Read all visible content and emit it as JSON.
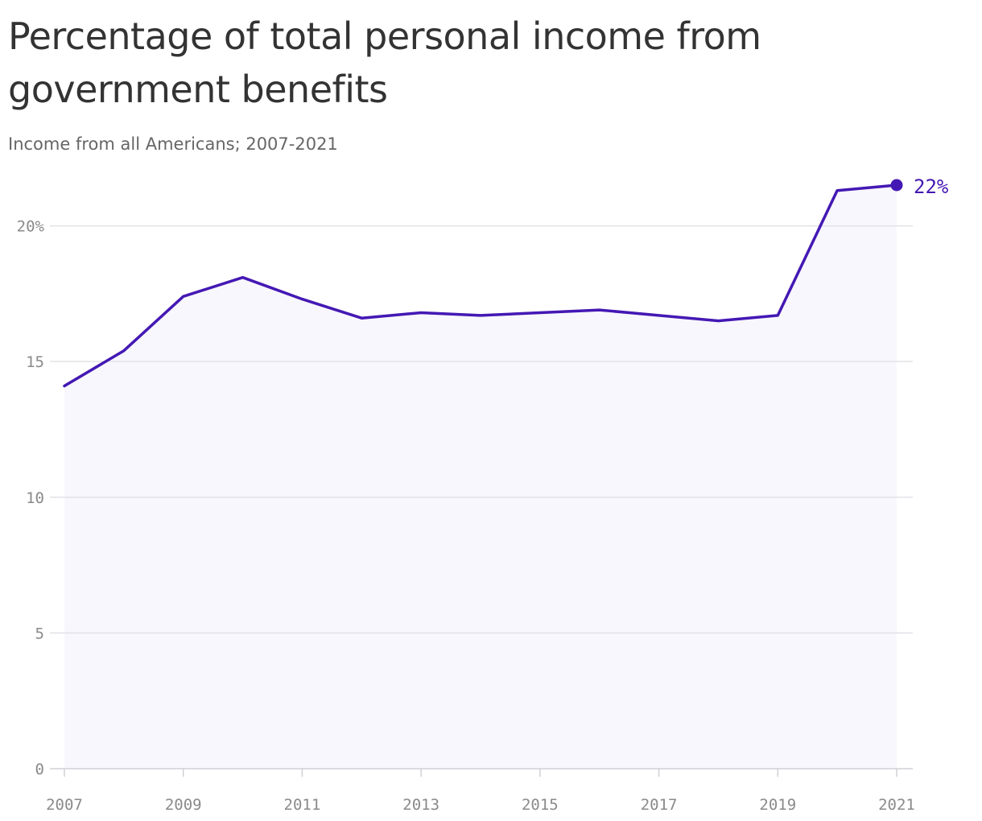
{
  "chart_data": {
    "type": "line",
    "title": "Percentage of total personal income from government benefits",
    "subtitle": "Income from all Americans; 2007-2021",
    "xlabel": "",
    "ylabel": "",
    "x": [
      2007,
      2008,
      2009,
      2010,
      2011,
      2012,
      2013,
      2014,
      2015,
      2016,
      2017,
      2018,
      2019,
      2020,
      2021
    ],
    "series": [
      {
        "values": [
          14.1,
          15.4,
          17.4,
          18.1,
          17.3,
          16.6,
          16.8,
          16.7,
          16.8,
          16.9,
          16.7,
          16.5,
          16.7,
          21.3,
          21.5
        ]
      }
    ],
    "ylim": [
      0,
      21.5
    ],
    "xlim": [
      2007,
      2021
    ],
    "y_ticks": [
      {
        "value": 0,
        "label": "0"
      },
      {
        "value": 5,
        "label": "5"
      },
      {
        "value": 10,
        "label": "10"
      },
      {
        "value": 15,
        "label": "15"
      },
      {
        "value": 20,
        "label": "20%"
      }
    ],
    "x_ticks": [
      {
        "value": 2007,
        "label": "2007"
      },
      {
        "value": 2009,
        "label": "2009"
      },
      {
        "value": 2011,
        "label": "2011"
      },
      {
        "value": 2013,
        "label": "2013"
      },
      {
        "value": 2015,
        "label": "2015"
      },
      {
        "value": 2017,
        "label": "2017"
      },
      {
        "value": 2019,
        "label": "2019"
      },
      {
        "value": 2021,
        "label": "2021"
      }
    ],
    "end_label": "22%",
    "grid": "horizontal",
    "colors": {
      "line": "#4418b4",
      "area": "#f8f7fd",
      "grid": "#e2e2e8",
      "axis": "#d0d0d6"
    }
  }
}
